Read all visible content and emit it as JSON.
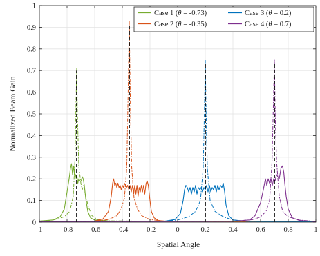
{
  "chart_data": {
    "type": "line",
    "title": "",
    "xlabel": "Spatial Angle",
    "ylabel": "Normalized Beam Gain",
    "xlim": [
      -1,
      1
    ],
    "ylim": [
      0,
      1
    ],
    "grid": true,
    "legend_position": "top-right",
    "x_ticks": [
      -1,
      -0.8,
      -0.6,
      -0.4,
      -0.2,
      0,
      0.2,
      0.4,
      0.6,
      0.8,
      1
    ],
    "x_tick_labels": [
      "-1",
      "-0.8",
      "-0.6",
      "-0.4",
      "-0.2",
      "0",
      "0.2",
      "0.4",
      "0.6",
      "0.8",
      "1"
    ],
    "y_ticks": [
      0,
      0.1,
      0.2,
      0.3,
      0.4,
      0.5,
      0.6,
      0.7,
      0.8,
      0.9,
      1
    ],
    "y_tick_labels": [
      "0",
      "0.1",
      "0.2",
      "0.3",
      "0.4",
      "0.5",
      "0.6",
      "0.7",
      "0.8",
      "0.9",
      "1"
    ],
    "series": [
      {
        "name": "Case 1 (θ = -0.73)",
        "legend_prefix": "Case 1 (",
        "legend_theta": "θ",
        "legend_suffix": " = -0.73)",
        "color": "#77AC30",
        "theta": -0.73,
        "solid": [
          [
            -1,
            0.005
          ],
          [
            -0.9,
            0.01
          ],
          [
            -0.85,
            0.025
          ],
          [
            -0.82,
            0.06
          ],
          [
            -0.8,
            0.14
          ],
          [
            -0.785,
            0.2
          ],
          [
            -0.775,
            0.25
          ],
          [
            -0.768,
            0.27
          ],
          [
            -0.76,
            0.22
          ],
          [
            -0.752,
            0.26
          ],
          [
            -0.745,
            0.21
          ],
          [
            -0.738,
            0.22
          ],
          [
            -0.733,
            0.2
          ],
          [
            -0.728,
            0.21
          ],
          [
            -0.722,
            0.18
          ],
          [
            -0.715,
            0.2
          ],
          [
            -0.706,
            0.19
          ],
          [
            -0.698,
            0.19
          ],
          [
            -0.69,
            0.21
          ],
          [
            -0.683,
            0.2
          ],
          [
            -0.675,
            0.17
          ],
          [
            -0.665,
            0.11
          ],
          [
            -0.65,
            0.05
          ],
          [
            -0.63,
            0.02
          ],
          [
            -0.6,
            0.01
          ],
          [
            -0.5,
            0.005
          ],
          [
            0,
            0.003
          ],
          [
            1,
            0.002
          ]
        ],
        "dashdot": [
          [
            -1,
            0.003
          ],
          [
            -0.9,
            0.01
          ],
          [
            -0.82,
            0.025
          ],
          [
            -0.78,
            0.05
          ],
          [
            -0.755,
            0.12
          ],
          [
            -0.742,
            0.3
          ],
          [
            -0.735,
            0.55
          ],
          [
            -0.73,
            0.71
          ],
          [
            -0.725,
            0.5
          ],
          [
            -0.715,
            0.26
          ],
          [
            -0.7,
            0.18
          ],
          [
            -0.69,
            0.15
          ],
          [
            -0.68,
            0.17
          ],
          [
            -0.665,
            0.12
          ],
          [
            -0.645,
            0.07
          ],
          [
            -0.62,
            0.03
          ],
          [
            -0.58,
            0.012
          ],
          [
            -0.5,
            0.006
          ],
          [
            0,
            0.003
          ],
          [
            1,
            0.002
          ]
        ]
      },
      {
        "name": "Case 2 (θ = -0.35)",
        "legend_prefix": "Case 2 (",
        "legend_theta": "θ",
        "legend_suffix": " = -0.35)",
        "color": "#D95319",
        "theta": -0.35,
        "solid": [
          [
            -1,
            0.003
          ],
          [
            -0.6,
            0.005
          ],
          [
            -0.54,
            0.015
          ],
          [
            -0.5,
            0.05
          ],
          [
            -0.48,
            0.12
          ],
          [
            -0.47,
            0.18
          ],
          [
            -0.463,
            0.2
          ],
          [
            -0.455,
            0.17
          ],
          [
            -0.447,
            0.18
          ],
          [
            -0.44,
            0.16
          ],
          [
            -0.432,
            0.18
          ],
          [
            -0.424,
            0.16
          ],
          [
            -0.416,
            0.17
          ],
          [
            -0.408,
            0.15
          ],
          [
            -0.4,
            0.17
          ],
          [
            -0.392,
            0.16
          ],
          [
            -0.385,
            0.18
          ],
          [
            -0.378,
            0.17
          ],
          [
            -0.37,
            0.16
          ],
          [
            -0.362,
            0.17
          ],
          [
            -0.353,
            0.15
          ],
          [
            -0.345,
            0.17
          ],
          [
            -0.335,
            0.14
          ],
          [
            -0.326,
            0.17
          ],
          [
            -0.318,
            0.13
          ],
          [
            -0.31,
            0.17
          ],
          [
            -0.302,
            0.13
          ],
          [
            -0.294,
            0.17
          ],
          [
            -0.286,
            0.12
          ],
          [
            -0.278,
            0.16
          ],
          [
            -0.27,
            0.14
          ],
          [
            -0.262,
            0.17
          ],
          [
            -0.254,
            0.14
          ],
          [
            -0.246,
            0.17
          ],
          [
            -0.238,
            0.13
          ],
          [
            -0.228,
            0.18
          ],
          [
            -0.22,
            0.19
          ],
          [
            -0.212,
            0.17
          ],
          [
            -0.2,
            0.1
          ],
          [
            -0.19,
            0.05
          ],
          [
            -0.17,
            0.02
          ],
          [
            -0.14,
            0.008
          ],
          [
            -0.1,
            0.005
          ],
          [
            1,
            0.002
          ]
        ],
        "dashdot": [
          [
            -1,
            0.002
          ],
          [
            -0.6,
            0.005
          ],
          [
            -0.5,
            0.012
          ],
          [
            -0.44,
            0.03
          ],
          [
            -0.41,
            0.06
          ],
          [
            -0.385,
            0.11
          ],
          [
            -0.368,
            0.25
          ],
          [
            -0.358,
            0.6
          ],
          [
            -0.35,
            0.93
          ],
          [
            -0.343,
            0.6
          ],
          [
            -0.332,
            0.25
          ],
          [
            -0.315,
            0.11
          ],
          [
            -0.29,
            0.06
          ],
          [
            -0.26,
            0.03
          ],
          [
            -0.2,
            0.012
          ],
          [
            -0.1,
            0.005
          ],
          [
            1,
            0.002
          ]
        ]
      },
      {
        "name": "Case 3 (θ = 0.2)",
        "legend_prefix": "Case 3 (",
        "legend_theta": "θ",
        "legend_suffix": " = 0.2)",
        "color": "#0072BD",
        "theta": 0.2,
        "solid": [
          [
            -1,
            0.002
          ],
          [
            -0.1,
            0.004
          ],
          [
            -0.02,
            0.012
          ],
          [
            0.02,
            0.04
          ],
          [
            0.04,
            0.1
          ],
          [
            0.05,
            0.15
          ],
          [
            0.06,
            0.17
          ],
          [
            0.07,
            0.16
          ],
          [
            0.08,
            0.14
          ],
          [
            0.09,
            0.16
          ],
          [
            0.1,
            0.13
          ],
          [
            0.11,
            0.16
          ],
          [
            0.12,
            0.14
          ],
          [
            0.13,
            0.17
          ],
          [
            0.14,
            0.13
          ],
          [
            0.15,
            0.16
          ],
          [
            0.16,
            0.15
          ],
          [
            0.17,
            0.16
          ],
          [
            0.18,
            0.14
          ],
          [
            0.19,
            0.16
          ],
          [
            0.2,
            0.15
          ],
          [
            0.21,
            0.17
          ],
          [
            0.22,
            0.14
          ],
          [
            0.23,
            0.17
          ],
          [
            0.24,
            0.14
          ],
          [
            0.25,
            0.16
          ],
          [
            0.26,
            0.15
          ],
          [
            0.27,
            0.17
          ],
          [
            0.28,
            0.14
          ],
          [
            0.29,
            0.17
          ],
          [
            0.3,
            0.15
          ],
          [
            0.31,
            0.17
          ],
          [
            0.32,
            0.16
          ],
          [
            0.33,
            0.18
          ],
          [
            0.34,
            0.14
          ],
          [
            0.35,
            0.08
          ],
          [
            0.37,
            0.03
          ],
          [
            0.4,
            0.01
          ],
          [
            0.5,
            0.004
          ],
          [
            1,
            0.002
          ]
        ],
        "dashdot": [
          [
            -1,
            0.002
          ],
          [
            -0.1,
            0.004
          ],
          [
            0,
            0.01
          ],
          [
            0.08,
            0.025
          ],
          [
            0.13,
            0.05
          ],
          [
            0.165,
            0.1
          ],
          [
            0.185,
            0.25
          ],
          [
            0.195,
            0.55
          ],
          [
            0.2,
            0.75
          ],
          [
            0.206,
            0.5
          ],
          [
            0.215,
            0.25
          ],
          [
            0.235,
            0.1
          ],
          [
            0.27,
            0.05
          ],
          [
            0.33,
            0.025
          ],
          [
            0.4,
            0.01
          ],
          [
            0.5,
            0.004
          ],
          [
            1,
            0.002
          ]
        ]
      },
      {
        "name": "Case 4 (θ = 0.7)",
        "legend_prefix": "Case 4 (",
        "legend_theta": "θ",
        "legend_suffix": " = 0.7)",
        "color": "#7E2F8E",
        "theta": 0.7,
        "solid": [
          [
            -1,
            0.002
          ],
          [
            0.4,
            0.004
          ],
          [
            0.52,
            0.01
          ],
          [
            0.56,
            0.03
          ],
          [
            0.6,
            0.09
          ],
          [
            0.62,
            0.15
          ],
          [
            0.635,
            0.2
          ],
          [
            0.645,
            0.17
          ],
          [
            0.655,
            0.2
          ],
          [
            0.665,
            0.18
          ],
          [
            0.675,
            0.2
          ],
          [
            0.685,
            0.17
          ],
          [
            0.695,
            0.2
          ],
          [
            0.705,
            0.19
          ],
          [
            0.715,
            0.22
          ],
          [
            0.725,
            0.21
          ],
          [
            0.735,
            0.2
          ],
          [
            0.748,
            0.25
          ],
          [
            0.758,
            0.26
          ],
          [
            0.768,
            0.23
          ],
          [
            0.775,
            0.18
          ],
          [
            0.785,
            0.12
          ],
          [
            0.8,
            0.06
          ],
          [
            0.83,
            0.02
          ],
          [
            0.88,
            0.008
          ],
          [
            1,
            0.003
          ]
        ],
        "dashdot": [
          [
            -1,
            0.002
          ],
          [
            0.4,
            0.004
          ],
          [
            0.55,
            0.012
          ],
          [
            0.6,
            0.025
          ],
          [
            0.64,
            0.05
          ],
          [
            0.665,
            0.1
          ],
          [
            0.683,
            0.28
          ],
          [
            0.693,
            0.55
          ],
          [
            0.7,
            0.75
          ],
          [
            0.706,
            0.5
          ],
          [
            0.716,
            0.28
          ],
          [
            0.735,
            0.12
          ],
          [
            0.76,
            0.05
          ],
          [
            0.8,
            0.025
          ],
          [
            0.88,
            0.01
          ],
          [
            1,
            0.003
          ]
        ]
      }
    ]
  }
}
